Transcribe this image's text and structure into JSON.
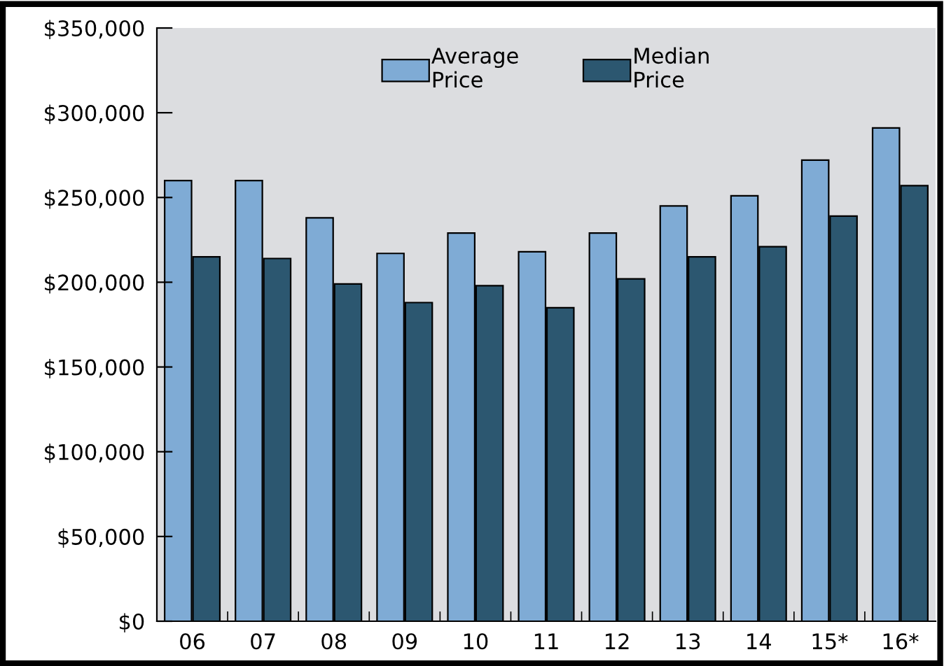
{
  "chart_data": {
    "type": "bar",
    "categories": [
      "06",
      "07",
      "08",
      "09",
      "10",
      "11",
      "12",
      "13",
      "14",
      "15*",
      "16*"
    ],
    "series": [
      {
        "name": "Average\nPrice",
        "color": "#7fabd5",
        "values": [
          260000,
          260000,
          238000,
          217000,
          229000,
          218000,
          229000,
          245000,
          251000,
          272000,
          291000
        ]
      },
      {
        "name": "Median\nPrice",
        "color": "#2c5770",
        "values": [
          215000,
          214000,
          199000,
          188000,
          198000,
          185000,
          202000,
          215000,
          221000,
          239000,
          257000
        ]
      }
    ],
    "ylim": [
      0,
      350000
    ],
    "yticks": [
      {
        "value": 0,
        "label": "$0"
      },
      {
        "value": 50000,
        "label": "$50,000"
      },
      {
        "value": 100000,
        "label": "$100,000"
      },
      {
        "value": 150000,
        "label": "$150,000"
      },
      {
        "value": 200000,
        "label": "$200,000"
      },
      {
        "value": 250000,
        "label": "$250,000"
      },
      {
        "value": 300000,
        "label": "$300,000"
      },
      {
        "value": 350000,
        "label": "$350,000"
      }
    ],
    "grid": false,
    "legend": "top"
  }
}
